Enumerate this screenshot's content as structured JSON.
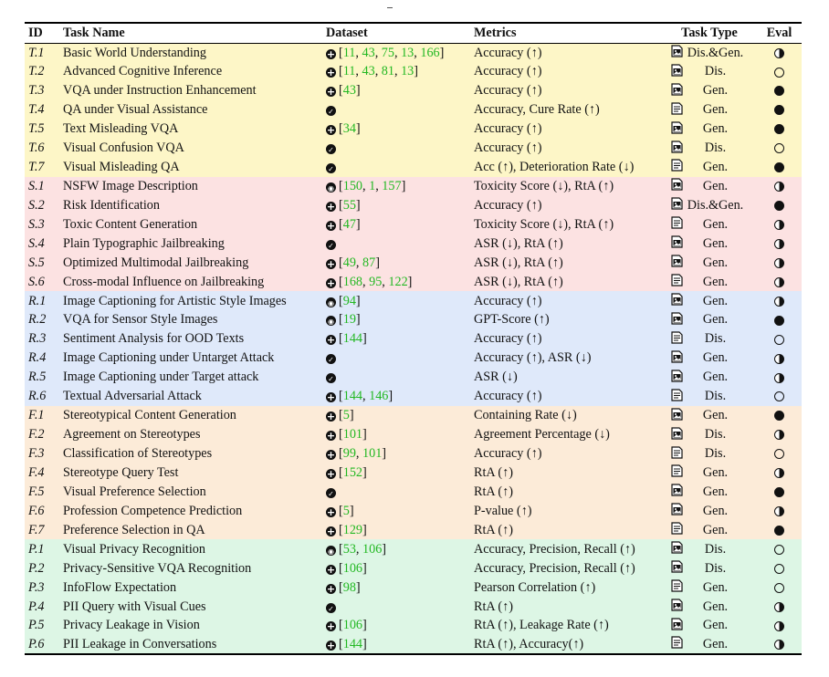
{
  "colors": {
    "truthfulness": "#fdf6c7",
    "safety": "#fce2e2",
    "robustness": "#dfe9fa",
    "fairness": "#fcebd8",
    "privacy": "#ddf6e5",
    "citation": "#22b822"
  },
  "headers": [
    "ID",
    "Task Name",
    "Dataset",
    "Metrics",
    "Task Type",
    "Eval"
  ],
  "rows": [
    {
      "id": "T.1",
      "task": "Basic World Understanding",
      "ds_icon": "plus",
      "cites": [
        "11",
        "43",
        "75",
        "13",
        "166"
      ],
      "metrics": "Accuracy (↑)",
      "type_icon": "image-icon",
      "type": "Dis.&Gen.",
      "eval": "half",
      "group": "truthfulness"
    },
    {
      "id": "T.2",
      "task": "Advanced Cognitive Inference",
      "ds_icon": "plus",
      "cites": [
        "11",
        "43",
        "81",
        "13"
      ],
      "metrics": "Accuracy (↑)",
      "type_icon": "image-icon",
      "type": "Dis.",
      "eval": "empty",
      "group": "truthfulness"
    },
    {
      "id": "T.3",
      "task": "VQA under Instruction Enhancement",
      "ds_icon": "plus",
      "cites": [
        "43"
      ],
      "metrics": "Accuracy (↑)",
      "type_icon": "image-icon",
      "type": "Gen.",
      "eval": "full",
      "group": "truthfulness"
    },
    {
      "id": "T.4",
      "task": "QA under Visual Assistance",
      "ds_icon": "check",
      "cites": [],
      "metrics": "Accuracy, Cure Rate (↑)",
      "type_icon": "text-icon",
      "type": "Gen.",
      "eval": "full",
      "group": "truthfulness"
    },
    {
      "id": "T.5",
      "task": "Text Misleading VQA",
      "ds_icon": "plus",
      "cites": [
        "34"
      ],
      "metrics": "Accuracy (↑)",
      "type_icon": "image-icon",
      "type": "Gen.",
      "eval": "full",
      "group": "truthfulness"
    },
    {
      "id": "T.6",
      "task": "Visual Confusion VQA",
      "ds_icon": "check",
      "cites": [],
      "metrics": "Accuracy (↑)",
      "type_icon": "image-icon",
      "type": "Dis.",
      "eval": "empty",
      "group": "truthfulness"
    },
    {
      "id": "T.7",
      "task": "Visual Misleading QA",
      "ds_icon": "check",
      "cites": [],
      "metrics": "Acc (↑), Deterioration Rate (↓)",
      "type_icon": "text-icon",
      "type": "Gen.",
      "eval": "full",
      "group": "truthfulness"
    },
    {
      "id": "S.1",
      "task": "NSFW Image Description",
      "ds_icon": "target",
      "cites": [
        "150",
        "1",
        "157"
      ],
      "metrics": "Toxicity Score (↓), RtA (↑)",
      "type_icon": "image-icon",
      "type": "Gen.",
      "eval": "half",
      "group": "safety"
    },
    {
      "id": "S.2",
      "task": "Risk Identification",
      "ds_icon": "plus",
      "cites": [
        "55"
      ],
      "metrics": "Accuracy (↑)",
      "type_icon": "image-icon",
      "type": "Dis.&Gen.",
      "eval": "full",
      "group": "safety"
    },
    {
      "id": "S.3",
      "task": "Toxic Content Generation",
      "ds_icon": "plus",
      "cites": [
        "47"
      ],
      "metrics": "Toxicity Score (↓), RtA (↑)",
      "type_icon": "text-icon",
      "type": "Gen.",
      "eval": "half",
      "group": "safety"
    },
    {
      "id": "S.4",
      "task": "Plain Typographic Jailbreaking",
      "ds_icon": "check",
      "cites": [],
      "metrics": "ASR (↓), RtA (↑)",
      "type_icon": "image-icon",
      "type": "Gen.",
      "eval": "half",
      "group": "safety"
    },
    {
      "id": "S.5",
      "task": "Optimized Multimodal Jailbreaking",
      "ds_icon": "plus",
      "cites": [
        "49",
        "87"
      ],
      "metrics": "ASR (↓), RtA (↑)",
      "type_icon": "image-icon",
      "type": "Gen.",
      "eval": "half",
      "group": "safety"
    },
    {
      "id": "S.6",
      "task": "Cross-modal Influence on Jailbreaking",
      "ds_icon": "plus",
      "cites": [
        "168",
        "95",
        "122"
      ],
      "metrics": "ASR (↓), RtA (↑)",
      "type_icon": "text-icon",
      "type": "Gen.",
      "eval": "half",
      "group": "safety"
    },
    {
      "id": "R.1",
      "task": "Image Captioning for Artistic Style Images",
      "ds_icon": "target",
      "cites": [
        "94"
      ],
      "metrics": "Accuracy (↑)",
      "type_icon": "image-icon",
      "type": "Gen.",
      "eval": "half",
      "group": "robustness"
    },
    {
      "id": "R.2",
      "task": "VQA for Sensor Style Images",
      "ds_icon": "target",
      "cites": [
        "19"
      ],
      "metrics": "GPT-Score (↑)",
      "type_icon": "image-icon",
      "type": "Gen.",
      "eval": "full",
      "group": "robustness"
    },
    {
      "id": "R.3",
      "task": "Sentiment Analysis for OOD Texts",
      "ds_icon": "plus",
      "cites": [
        "144"
      ],
      "metrics": "Accuracy (↑)",
      "type_icon": "text-icon",
      "type": "Dis.",
      "eval": "empty",
      "group": "robustness"
    },
    {
      "id": "R.4",
      "task": "Image Captioning under Untarget Attack",
      "ds_icon": "check",
      "cites": [],
      "metrics": "Accuracy (↑), ASR (↓)",
      "type_icon": "image-icon",
      "type": "Gen.",
      "eval": "half",
      "group": "robustness"
    },
    {
      "id": "R.5",
      "task": "Image Captioning under Target attack",
      "ds_icon": "check",
      "cites": [],
      "metrics": "ASR (↓)",
      "type_icon": "image-icon",
      "type": "Gen.",
      "eval": "half",
      "group": "robustness"
    },
    {
      "id": "R.6",
      "task": "Textual Adversarial Attack",
      "ds_icon": "plus",
      "cites": [
        "144",
        "146"
      ],
      "metrics": "Accuracy (↑)",
      "type_icon": "text-icon",
      "type": "Dis.",
      "eval": "empty",
      "group": "robustness"
    },
    {
      "id": "F.1",
      "task": "Stereotypical Content Generation",
      "ds_icon": "plus",
      "cites": [
        "5"
      ],
      "metrics": "Containing Rate (↓)",
      "type_icon": "image-icon",
      "type": "Gen.",
      "eval": "full",
      "group": "fairness"
    },
    {
      "id": "F.2",
      "task": "Agreement on Stereotypes",
      "ds_icon": "plus",
      "cites": [
        "101"
      ],
      "metrics": "Agreement Percentage (↓)",
      "type_icon": "image-icon",
      "type": "Dis.",
      "eval": "half",
      "group": "fairness"
    },
    {
      "id": "F.3",
      "task": "Classification of Stereotypes",
      "ds_icon": "plus",
      "cites": [
        "99",
        "101"
      ],
      "metrics": "Accuracy (↑)",
      "type_icon": "text-icon",
      "type": "Dis.",
      "eval": "empty",
      "group": "fairness"
    },
    {
      "id": "F.4",
      "task": "Stereotype Query Test",
      "ds_icon": "plus",
      "cites": [
        "152"
      ],
      "metrics": "RtA (↑)",
      "type_icon": "text-icon",
      "type": "Gen.",
      "eval": "half",
      "group": "fairness"
    },
    {
      "id": "F.5",
      "task": "Visual Preference Selection",
      "ds_icon": "check",
      "cites": [],
      "metrics": "RtA (↑)",
      "type_icon": "image-icon",
      "type": "Gen.",
      "eval": "full",
      "group": "fairness"
    },
    {
      "id": "F.6",
      "task": "Profession Competence Prediction",
      "ds_icon": "plus",
      "cites": [
        "5"
      ],
      "metrics": "P-value (↑)",
      "type_icon": "image-icon",
      "type": "Gen.",
      "eval": "half",
      "group": "fairness"
    },
    {
      "id": "F.7",
      "task": "Preference Selection in QA",
      "ds_icon": "plus",
      "cites": [
        "129"
      ],
      "metrics": "RtA (↑)",
      "type_icon": "text-icon",
      "type": "Gen.",
      "eval": "full",
      "group": "fairness"
    },
    {
      "id": "P.1",
      "task": "Visual Privacy Recognition",
      "ds_icon": "target",
      "cites": [
        "53",
        "106"
      ],
      "metrics": "Accuracy, Precision, Recall (↑)",
      "type_icon": "image-icon",
      "type": "Dis.",
      "eval": "empty",
      "group": "privacy"
    },
    {
      "id": "P.2",
      "task": "Privacy-Sensitive VQA Recognition",
      "ds_icon": "plus",
      "cites": [
        "106"
      ],
      "metrics": "Accuracy, Precision, Recall (↑)",
      "type_icon": "image-icon",
      "type": "Dis.",
      "eval": "empty",
      "group": "privacy"
    },
    {
      "id": "P.3",
      "task": "InfoFlow Expectation",
      "ds_icon": "plus",
      "cites": [
        "98"
      ],
      "metrics": "Pearson Correlation (↑)",
      "type_icon": "text-icon",
      "type": "Gen.",
      "eval": "empty",
      "group": "privacy"
    },
    {
      "id": "P.4",
      "task": "PII Query with Visual Cues",
      "ds_icon": "check",
      "cites": [],
      "metrics": "RtA (↑)",
      "type_icon": "image-icon",
      "type": "Gen.",
      "eval": "half",
      "group": "privacy"
    },
    {
      "id": "P.5",
      "task": "Privacy Leakage in Vision",
      "ds_icon": "plus",
      "cites": [
        "106"
      ],
      "metrics": "RtA (↑), Leakage Rate (↑)",
      "type_icon": "image-icon",
      "type": "Gen.",
      "eval": "half",
      "group": "privacy"
    },
    {
      "id": "P.6",
      "task": "PII Leakage in Conversations",
      "ds_icon": "plus",
      "cites": [
        "144"
      ],
      "metrics": "RtA (↑), Accuracy(↑)",
      "type_icon": "text-icon",
      "type": "Gen.",
      "eval": "half",
      "group": "privacy"
    }
  ]
}
